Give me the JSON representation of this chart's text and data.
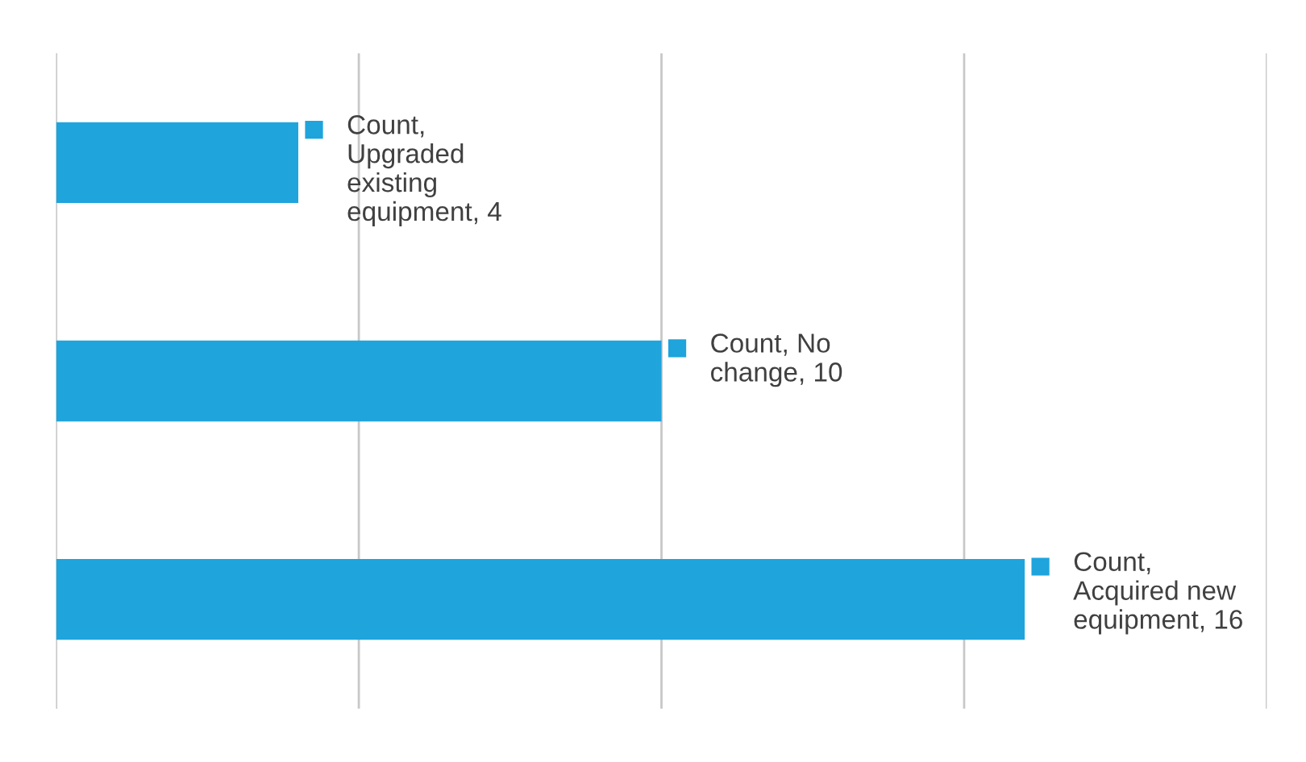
{
  "chart_data": {
    "type": "bar",
    "orientation": "horizontal",
    "categories": [
      null,
      null,
      null
    ],
    "values": [
      4,
      10,
      16
    ],
    "color": "#1fa4dc",
    "value_labels": [
      "Count,\nUpgraded\nexisting\nequipment, 4",
      "Count, No\nchange, 10",
      "Count,\nAcquired new\nequipment, 16"
    ],
    "xlim": [
      0,
      20
    ],
    "xticks": [
      {
        "value": 0,
        "label": null
      },
      {
        "value": 5,
        "label": null
      },
      {
        "value": 10,
        "label": null
      },
      {
        "value": 15,
        "label": null
      },
      {
        "value": 20,
        "label": null
      }
    ],
    "grid": "x"
  }
}
